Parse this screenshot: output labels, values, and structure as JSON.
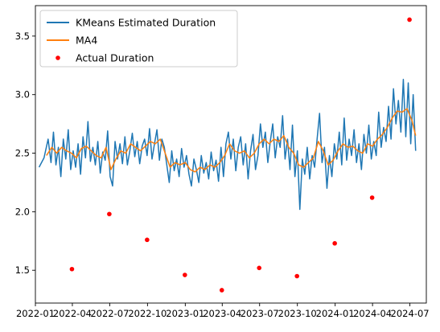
{
  "chart_data": {
    "type": "line",
    "title": "",
    "xlabel": "",
    "ylabel": "",
    "x_axis": {
      "type": "date",
      "range": [
        "2022-01-01",
        "2024-08-10"
      ],
      "ticks": [
        {
          "date": "2022-01-01",
          "label": "2022-01"
        },
        {
          "date": "2022-04-01",
          "label": "2022-04"
        },
        {
          "date": "2022-07-01",
          "label": "2022-07"
        },
        {
          "date": "2022-10-01",
          "label": "2022-10"
        },
        {
          "date": "2023-01-01",
          "label": "2023-01"
        },
        {
          "date": "2023-04-01",
          "label": "2023-04"
        },
        {
          "date": "2023-07-01",
          "label": "2023-07"
        },
        {
          "date": "2023-10-01",
          "label": "2023-10"
        },
        {
          "date": "2024-01-01",
          "label": "2024-01"
        },
        {
          "date": "2024-04-01",
          "label": "2024-04"
        },
        {
          "date": "2024-07-01",
          "label": "2024-07"
        }
      ]
    },
    "y_axis": {
      "range": [
        1.22,
        3.76
      ],
      "ticks": [
        {
          "value": 1.5,
          "label": "1.5"
        },
        {
          "value": 2.0,
          "label": "2.0"
        },
        {
          "value": 2.5,
          "label": "2.5"
        },
        {
          "value": 3.0,
          "label": "3.0"
        },
        {
          "value": 3.5,
          "label": "3.5"
        }
      ]
    },
    "grid": false,
    "legend_position": "upper-left",
    "series": [
      {
        "name": "KMeans Estimated Duration",
        "kind": "line",
        "color": "#1f77b4",
        "x_start": "2022-01-10",
        "x_end": "2024-07-15",
        "points": [
          [
            "2022-01-10",
            2.38
          ],
          [
            "2022-01-22",
            2.46
          ],
          [
            "2022-02-01",
            2.62
          ],
          [
            "2022-02-08",
            2.42
          ],
          [
            "2022-02-14",
            2.68
          ],
          [
            "2022-02-20",
            2.4
          ],
          [
            "2022-02-26",
            2.55
          ],
          [
            "2022-03-04",
            2.3
          ],
          [
            "2022-03-10",
            2.62
          ],
          [
            "2022-03-16",
            2.45
          ],
          [
            "2022-03-22",
            2.7
          ],
          [
            "2022-03-28",
            2.36
          ],
          [
            "2022-04-03",
            2.52
          ],
          [
            "2022-04-09",
            2.38
          ],
          [
            "2022-04-15",
            2.58
          ],
          [
            "2022-04-21",
            2.32
          ],
          [
            "2022-04-27",
            2.64
          ],
          [
            "2022-05-03",
            2.46
          ],
          [
            "2022-05-09",
            2.77
          ],
          [
            "2022-05-15",
            2.43
          ],
          [
            "2022-05-21",
            2.55
          ],
          [
            "2022-05-27",
            2.4
          ],
          [
            "2022-06-02",
            2.6
          ],
          [
            "2022-06-08",
            2.33
          ],
          [
            "2022-06-14",
            2.51
          ],
          [
            "2022-06-20",
            2.44
          ],
          [
            "2022-06-26",
            2.69
          ],
          [
            "2022-07-02",
            2.3
          ],
          [
            "2022-07-08",
            2.22
          ],
          [
            "2022-07-14",
            2.6
          ],
          [
            "2022-07-20",
            2.45
          ],
          [
            "2022-07-26",
            2.58
          ],
          [
            "2022-08-01",
            2.41
          ],
          [
            "2022-08-07",
            2.64
          ],
          [
            "2022-08-13",
            2.4
          ],
          [
            "2022-08-19",
            2.52
          ],
          [
            "2022-08-25",
            2.67
          ],
          [
            "2022-08-31",
            2.47
          ],
          [
            "2022-09-06",
            2.6
          ],
          [
            "2022-09-12",
            2.41
          ],
          [
            "2022-09-18",
            2.56
          ],
          [
            "2022-09-24",
            2.62
          ],
          [
            "2022-09-30",
            2.48
          ],
          [
            "2022-10-06",
            2.71
          ],
          [
            "2022-10-12",
            2.45
          ],
          [
            "2022-10-18",
            2.58
          ],
          [
            "2022-10-24",
            2.7
          ],
          [
            "2022-10-30",
            2.44
          ],
          [
            "2022-11-05",
            2.62
          ],
          [
            "2022-11-11",
            2.55
          ],
          [
            "2022-11-17",
            2.4
          ],
          [
            "2022-11-23",
            2.25
          ],
          [
            "2022-11-29",
            2.52
          ],
          [
            "2022-12-05",
            2.35
          ],
          [
            "2022-12-11",
            2.45
          ],
          [
            "2022-12-17",
            2.3
          ],
          [
            "2022-12-23",
            2.54
          ],
          [
            "2022-12-29",
            2.38
          ],
          [
            "2023-01-04",
            2.48
          ],
          [
            "2023-01-10",
            2.32
          ],
          [
            "2023-01-16",
            2.22
          ],
          [
            "2023-01-22",
            2.45
          ],
          [
            "2023-01-28",
            2.36
          ],
          [
            "2023-02-03",
            2.25
          ],
          [
            "2023-02-09",
            2.48
          ],
          [
            "2023-02-15",
            2.33
          ],
          [
            "2023-02-21",
            2.42
          ],
          [
            "2023-02-27",
            2.28
          ],
          [
            "2023-03-05",
            2.51
          ],
          [
            "2023-03-11",
            2.35
          ],
          [
            "2023-03-17",
            2.44
          ],
          [
            "2023-03-23",
            2.26
          ],
          [
            "2023-03-29",
            2.55
          ],
          [
            "2023-04-04",
            2.3
          ],
          [
            "2023-04-10",
            2.58
          ],
          [
            "2023-04-16",
            2.68
          ],
          [
            "2023-04-22",
            2.45
          ],
          [
            "2023-04-28",
            2.62
          ],
          [
            "2023-05-04",
            2.35
          ],
          [
            "2023-05-10",
            2.55
          ],
          [
            "2023-05-16",
            2.64
          ],
          [
            "2023-05-22",
            2.4
          ],
          [
            "2023-05-28",
            2.58
          ],
          [
            "2023-06-03",
            2.28
          ],
          [
            "2023-06-09",
            2.52
          ],
          [
            "2023-06-15",
            2.66
          ],
          [
            "2023-06-21",
            2.36
          ],
          [
            "2023-06-27",
            2.48
          ],
          [
            "2023-07-03",
            2.75
          ],
          [
            "2023-07-09",
            2.55
          ],
          [
            "2023-07-15",
            2.68
          ],
          [
            "2023-07-21",
            2.42
          ],
          [
            "2023-07-27",
            2.6
          ],
          [
            "2023-08-02",
            2.75
          ],
          [
            "2023-08-08",
            2.46
          ],
          [
            "2023-08-14",
            2.64
          ],
          [
            "2023-08-20",
            2.55
          ],
          [
            "2023-08-26",
            2.82
          ],
          [
            "2023-09-01",
            2.45
          ],
          [
            "2023-09-07",
            2.62
          ],
          [
            "2023-09-13",
            2.36
          ],
          [
            "2023-09-19",
            2.74
          ],
          [
            "2023-09-25",
            2.3
          ],
          [
            "2023-10-01",
            2.52
          ],
          [
            "2023-10-07",
            2.02
          ],
          [
            "2023-10-13",
            2.45
          ],
          [
            "2023-10-19",
            2.32
          ],
          [
            "2023-10-25",
            2.55
          ],
          [
            "2023-10-31",
            2.28
          ],
          [
            "2023-11-06",
            2.48
          ],
          [
            "2023-11-12",
            2.38
          ],
          [
            "2023-11-18",
            2.62
          ],
          [
            "2023-11-24",
            2.84
          ],
          [
            "2023-11-30",
            2.42
          ],
          [
            "2023-12-06",
            2.55
          ],
          [
            "2023-12-12",
            2.2
          ],
          [
            "2023-12-18",
            2.48
          ],
          [
            "2023-12-24",
            2.3
          ],
          [
            "2023-12-30",
            2.58
          ],
          [
            "2024-01-05",
            2.45
          ],
          [
            "2024-01-11",
            2.68
          ],
          [
            "2024-01-17",
            2.4
          ],
          [
            "2024-01-23",
            2.8
          ],
          [
            "2024-01-29",
            2.44
          ],
          [
            "2024-02-04",
            2.62
          ],
          [
            "2024-02-10",
            2.48
          ],
          [
            "2024-02-16",
            2.7
          ],
          [
            "2024-02-22",
            2.42
          ],
          [
            "2024-02-28",
            2.58
          ],
          [
            "2024-03-05",
            2.36
          ],
          [
            "2024-03-11",
            2.66
          ],
          [
            "2024-03-17",
            2.5
          ],
          [
            "2024-03-23",
            2.74
          ],
          [
            "2024-03-29",
            2.45
          ],
          [
            "2024-04-04",
            2.6
          ],
          [
            "2024-04-10",
            2.48
          ],
          [
            "2024-04-16",
            2.85
          ],
          [
            "2024-04-22",
            2.55
          ],
          [
            "2024-04-28",
            2.72
          ],
          [
            "2024-05-04",
            2.6
          ],
          [
            "2024-05-10",
            2.9
          ],
          [
            "2024-05-16",
            2.62
          ],
          [
            "2024-05-22",
            3.05
          ],
          [
            "2024-05-28",
            2.75
          ],
          [
            "2024-06-03",
            2.95
          ],
          [
            "2024-06-09",
            2.68
          ],
          [
            "2024-06-15",
            3.13
          ],
          [
            "2024-06-21",
            2.64
          ],
          [
            "2024-06-27",
            3.1
          ],
          [
            "2024-07-03",
            2.58
          ],
          [
            "2024-07-09",
            3.0
          ],
          [
            "2024-07-15",
            2.52
          ]
        ]
      },
      {
        "name": "MA4",
        "kind": "line",
        "color": "#ff7f0e",
        "points": [
          [
            "2022-01-28",
            2.48
          ],
          [
            "2022-02-10",
            2.55
          ],
          [
            "2022-02-22",
            2.5
          ],
          [
            "2022-03-06",
            2.55
          ],
          [
            "2022-03-18",
            2.52
          ],
          [
            "2022-03-30",
            2.5
          ],
          [
            "2022-04-11",
            2.46
          ],
          [
            "2022-04-23",
            2.54
          ],
          [
            "2022-05-05",
            2.56
          ],
          [
            "2022-05-17",
            2.52
          ],
          [
            "2022-05-29",
            2.48
          ],
          [
            "2022-06-10",
            2.46
          ],
          [
            "2022-06-22",
            2.55
          ],
          [
            "2022-07-04",
            2.36
          ],
          [
            "2022-07-16",
            2.45
          ],
          [
            "2022-07-28",
            2.52
          ],
          [
            "2022-08-09",
            2.5
          ],
          [
            "2022-08-21",
            2.58
          ],
          [
            "2022-09-02",
            2.55
          ],
          [
            "2022-09-14",
            2.52
          ],
          [
            "2022-09-26",
            2.56
          ],
          [
            "2022-10-08",
            2.6
          ],
          [
            "2022-10-20",
            2.58
          ],
          [
            "2022-11-01",
            2.62
          ],
          [
            "2022-11-13",
            2.5
          ],
          [
            "2022-11-25",
            2.38
          ],
          [
            "2022-12-07",
            2.42
          ],
          [
            "2022-12-19",
            2.4
          ],
          [
            "2023-01-01",
            2.42
          ],
          [
            "2023-01-13",
            2.36
          ],
          [
            "2023-01-25",
            2.34
          ],
          [
            "2023-02-06",
            2.38
          ],
          [
            "2023-02-18",
            2.36
          ],
          [
            "2023-03-02",
            2.4
          ],
          [
            "2023-03-14",
            2.38
          ],
          [
            "2023-03-26",
            2.42
          ],
          [
            "2023-04-07",
            2.48
          ],
          [
            "2023-04-19",
            2.58
          ],
          [
            "2023-05-01",
            2.52
          ],
          [
            "2023-05-13",
            2.5
          ],
          [
            "2023-05-25",
            2.52
          ],
          [
            "2023-06-06",
            2.46
          ],
          [
            "2023-06-18",
            2.5
          ],
          [
            "2023-06-30",
            2.58
          ],
          [
            "2023-07-12",
            2.62
          ],
          [
            "2023-07-24",
            2.58
          ],
          [
            "2023-08-05",
            2.62
          ],
          [
            "2023-08-17",
            2.6
          ],
          [
            "2023-08-29",
            2.65
          ],
          [
            "2023-09-10",
            2.55
          ],
          [
            "2023-09-22",
            2.5
          ],
          [
            "2023-10-04",
            2.4
          ],
          [
            "2023-10-16",
            2.38
          ],
          [
            "2023-10-28",
            2.42
          ],
          [
            "2023-11-09",
            2.46
          ],
          [
            "2023-11-21",
            2.6
          ],
          [
            "2023-12-03",
            2.52
          ],
          [
            "2023-12-15",
            2.4
          ],
          [
            "2023-12-27",
            2.44
          ],
          [
            "2024-01-08",
            2.52
          ],
          [
            "2024-01-20",
            2.58
          ],
          [
            "2024-02-01",
            2.55
          ],
          [
            "2024-02-13",
            2.56
          ],
          [
            "2024-02-25",
            2.52
          ],
          [
            "2024-03-08",
            2.5
          ],
          [
            "2024-03-20",
            2.58
          ],
          [
            "2024-04-01",
            2.56
          ],
          [
            "2024-04-13",
            2.62
          ],
          [
            "2024-04-25",
            2.66
          ],
          [
            "2024-05-07",
            2.72
          ],
          [
            "2024-05-19",
            2.8
          ],
          [
            "2024-05-31",
            2.86
          ],
          [
            "2024-06-12",
            2.85
          ],
          [
            "2024-06-24",
            2.88
          ],
          [
            "2024-07-06",
            2.78
          ],
          [
            "2024-07-15",
            2.65
          ]
        ]
      },
      {
        "name": "Actual Duration",
        "kind": "scatter",
        "color": "#ff0000",
        "points": [
          [
            "2022-03-31",
            1.51
          ],
          [
            "2022-06-30",
            1.98
          ],
          [
            "2022-09-30",
            1.76
          ],
          [
            "2022-12-31",
            1.46
          ],
          [
            "2023-03-31",
            1.33
          ],
          [
            "2023-06-30",
            1.52
          ],
          [
            "2023-09-30",
            1.45
          ],
          [
            "2023-12-31",
            1.73
          ],
          [
            "2024-03-31",
            2.12
          ],
          [
            "2024-06-30",
            3.64
          ]
        ]
      }
    ]
  }
}
